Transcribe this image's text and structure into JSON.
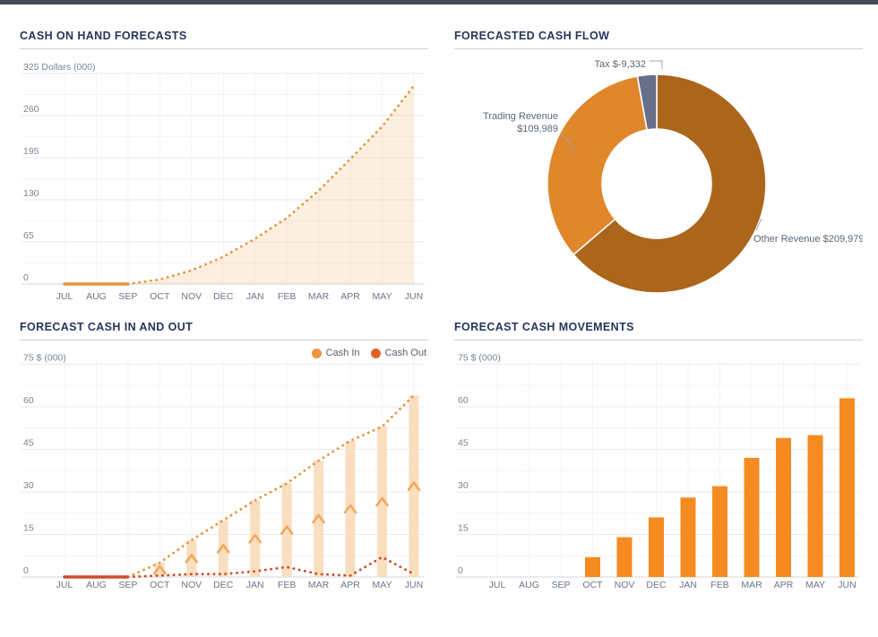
{
  "page": {
    "top_bar_color": "#474C52",
    "title_color": "#26365A"
  },
  "months": [
    "JUL",
    "AUG",
    "SEP",
    "OCT",
    "NOV",
    "DEC",
    "JAN",
    "FEB",
    "MAR",
    "APR",
    "MAY",
    "JUN"
  ],
  "chart_data": [
    {
      "id": "cash-on-hand",
      "type": "area",
      "title": "CASH ON HAND FORECASTS",
      "y_axis_top_label": "325 Dollars (000)",
      "ylim": [
        0,
        325
      ],
      "ytick_step": 65,
      "ytick_labels": [
        "0",
        "65",
        "130",
        "195",
        "260"
      ],
      "grid": true,
      "categories": [
        "JUL",
        "AUG",
        "SEP",
        "OCT",
        "NOV",
        "DEC",
        "JAN",
        "FEB",
        "MAR",
        "APR",
        "MAY",
        "JUN"
      ],
      "series": [
        {
          "name": "Cash on hand forecast",
          "values": [
            0,
            0,
            0,
            7,
            21,
            42,
            70,
            102,
            144,
            193,
            243,
            306
          ],
          "actual_through_index": 2,
          "line_color": "#E29A3E",
          "fill_color": "rgba(243,153,60,0.16)",
          "line_style": "dotted-forecast"
        }
      ]
    },
    {
      "id": "forecasted-cash-flow",
      "type": "pie",
      "title": "FORECASTED CASH FLOW",
      "donut": true,
      "slices": [
        {
          "name": "Other Revenue",
          "value": 209979,
          "label": "Other Revenue $209,979",
          "label_lines": [
            "Other Revenue $209,979"
          ],
          "color": "#AC661C"
        },
        {
          "name": "Trading Revenue",
          "value": 109989,
          "label": "Trading Revenue $109,989",
          "label_lines": [
            "Trading Revenue",
            "$109,989"
          ],
          "color": "#E0862B"
        },
        {
          "name": "Tax",
          "value": -9332,
          "label": "Tax $-9,332",
          "label_lines": [
            "Tax $-9,332"
          ],
          "color": "#667089"
        }
      ]
    },
    {
      "id": "forecast-cash-in-and-out",
      "type": "bar+line",
      "title": "FORECAST CASH IN AND OUT",
      "y_axis_top_label": "75 $ (000)",
      "ylim": [
        0,
        75
      ],
      "ytick_step": 15,
      "ytick_labels": [
        "0",
        "15",
        "30",
        "45",
        "60"
      ],
      "grid": true,
      "legend_position": "top-right",
      "categories": [
        "JUL",
        "AUG",
        "SEP",
        "OCT",
        "NOV",
        "DEC",
        "JAN",
        "FEB",
        "MAR",
        "APR",
        "MAY",
        "JUN"
      ],
      "series": [
        {
          "name": "Cash In",
          "values": [
            0,
            0,
            0,
            5,
            13,
            20,
            27,
            33,
            41,
            48,
            53,
            64
          ],
          "legend_color": "#F09143",
          "line_color": "#E29A3E",
          "bar_color": "#F9DEC0",
          "marker_color": "#F2A85C",
          "line_style": "dotted-forecast"
        },
        {
          "name": "Cash Out",
          "values": [
            0,
            0,
            0,
            0.5,
            1,
            1,
            2,
            3.5,
            1,
            0.5,
            7,
            1
          ],
          "legend_color": "#E4602B",
          "line_color": "#D14B2C",
          "actual_through_index": 2,
          "line_style": "dotted-forecast"
        }
      ]
    },
    {
      "id": "forecast-cash-movements",
      "type": "bar",
      "title": "FORECAST CASH MOVEMENTS",
      "y_axis_top_label": "75 $ (000)",
      "ylim": [
        0,
        75
      ],
      "ytick_step": 15,
      "ytick_labels": [
        "0",
        "15",
        "30",
        "45",
        "60"
      ],
      "grid": true,
      "categories": [
        "JUL",
        "AUG",
        "SEP",
        "OCT",
        "NOV",
        "DEC",
        "JAN",
        "FEB",
        "MAR",
        "APR",
        "MAY",
        "JUN"
      ],
      "values": [
        0,
        0,
        0,
        7,
        14,
        21,
        28,
        32,
        42,
        49,
        50,
        63
      ],
      "bar_color": "#F68B22"
    }
  ],
  "axis_style": {
    "tick_color": "#7A8591",
    "month_color": "#6B7682",
    "major_grid": "#E7EAED",
    "minor_grid": "#F3F4F6",
    "axis_line": "#D9DDE1",
    "label_color": "#5B6674",
    "connector_color": "#9AA5B1"
  }
}
